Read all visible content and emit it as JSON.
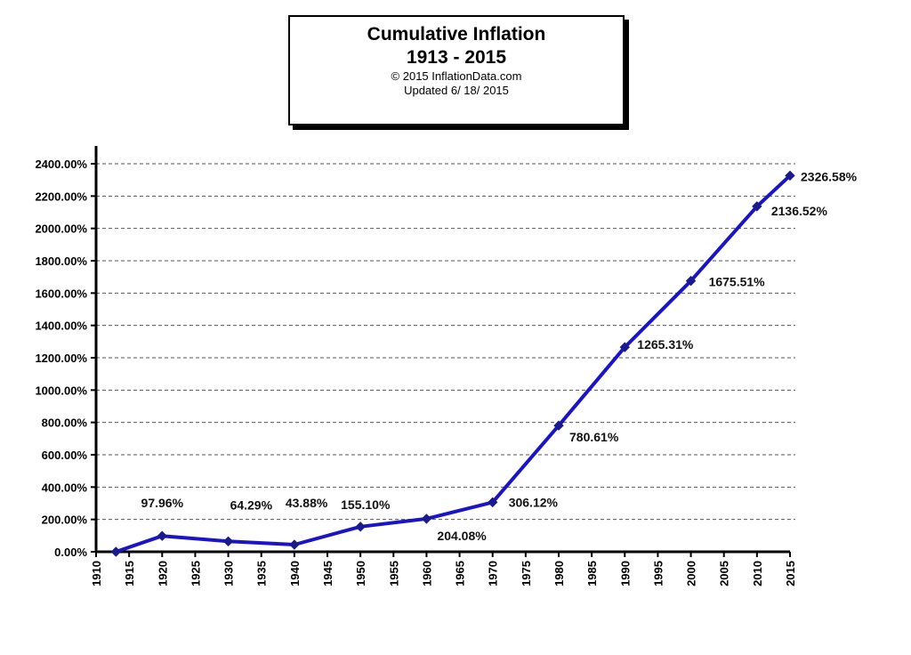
{
  "title": {
    "line1": "Cumulative Inflation",
    "line2": "1913 - 2015",
    "copyright": "© 2015 InflationData.com",
    "updated": "Updated    6/ 18/ 2015"
  },
  "colors": {
    "series": "#1a14c8",
    "marker": "#1a1a8c",
    "grid": "#555555",
    "axis": "#000000"
  },
  "chart_data": {
    "type": "line",
    "title": "Cumulative Inflation",
    "subtitle": "1913 - 2015",
    "xlabel": "",
    "ylabel": "",
    "xlim": [
      1910,
      2015
    ],
    "ylim": [
      0,
      2400
    ],
    "grid": true,
    "legend": "none",
    "y_ticks": [
      0,
      200,
      400,
      600,
      800,
      1000,
      1200,
      1400,
      1600,
      1800,
      2000,
      2200,
      2400
    ],
    "y_tick_labels": [
      "0.00%",
      "200.00%",
      "400.00%",
      "600.00%",
      "800.00%",
      "1000.00%",
      "1200.00%",
      "1400.00%",
      "1600.00%",
      "1800.00%",
      "2000.00%",
      "2200.00%",
      "2400.00%"
    ],
    "x_ticks": [
      1910,
      1915,
      1920,
      1925,
      1930,
      1935,
      1940,
      1945,
      1950,
      1955,
      1960,
      1965,
      1970,
      1975,
      1980,
      1985,
      1990,
      1995,
      2000,
      2005,
      2010,
      2015
    ],
    "x_tick_labels": [
      "1910",
      "1915",
      "1920",
      "1925",
      "1930",
      "1935",
      "1940",
      "1945",
      "1950",
      "1955",
      "1960",
      "1965",
      "1970",
      "1975",
      "1980",
      "1985",
      "1990",
      "1995",
      "2000",
      "2005",
      "2010",
      "2015"
    ],
    "series": [
      {
        "points": [
          {
            "x": 1913,
            "y": 0,
            "label": ""
          },
          {
            "x": 1920,
            "y": 97.96,
            "label": "97.96%"
          },
          {
            "x": 1930,
            "y": 64.29,
            "label": "64.29%"
          },
          {
            "x": 1940,
            "y": 43.88,
            "label": "43.88%"
          },
          {
            "x": 1950,
            "y": 155.1,
            "label": "155.10%"
          },
          {
            "x": 1960,
            "y": 204.08,
            "label": "204.08%"
          },
          {
            "x": 1970,
            "y": 306.12,
            "label": "306.12%"
          },
          {
            "x": 1980,
            "y": 780.61,
            "label": "780.61%"
          },
          {
            "x": 1990,
            "y": 1265.31,
            "label": "1265.31%"
          },
          {
            "x": 2000,
            "y": 1675.51,
            "label": "1675.51%"
          },
          {
            "x": 2010,
            "y": 2136.52,
            "label": "2136.52%"
          },
          {
            "x": 2015,
            "y": 2326.58,
            "label": "2326.58%"
          }
        ]
      }
    ]
  }
}
